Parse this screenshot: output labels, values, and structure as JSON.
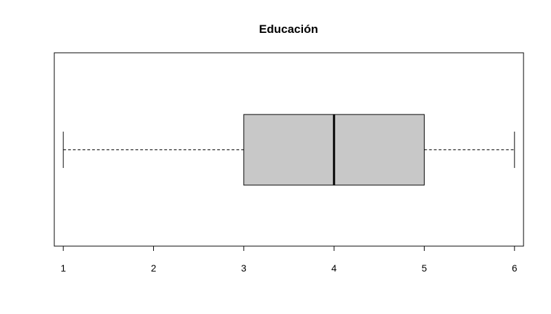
{
  "chart_data": {
    "type": "boxplot",
    "orientation": "horizontal",
    "title": "Educación",
    "xlabel": "",
    "ylabel": "",
    "xlim": [
      0.9,
      6.1
    ],
    "ticks": [
      1,
      2,
      3,
      4,
      5,
      6
    ],
    "tick_labels": [
      "1",
      "2",
      "3",
      "4",
      "5",
      "6"
    ],
    "box": {
      "whisker_low": 1,
      "q1": 3,
      "median": 4,
      "q3": 5,
      "whisker_high": 6
    },
    "grid": false,
    "box_color": "#c8c8c8"
  }
}
